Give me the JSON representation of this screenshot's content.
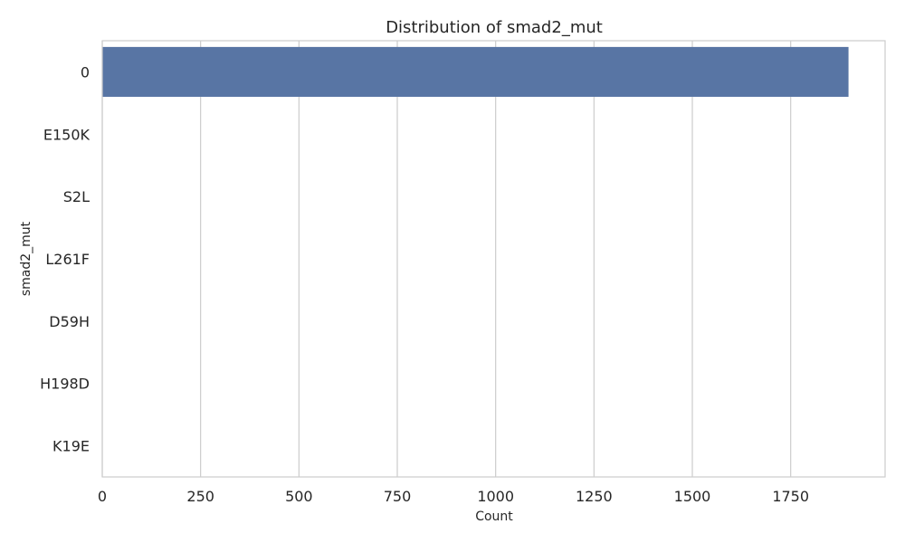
{
  "chart_data": {
    "type": "bar",
    "orientation": "horizontal",
    "title": "Distribution of smad2_mut",
    "xlabel": "Count",
    "ylabel": "smad2_mut",
    "categories": [
      "0",
      "E150K",
      "S2L",
      "L261F",
      "D59H",
      "H198D",
      "K19E"
    ],
    "values": [
      1897,
      1,
      1,
      1,
      1,
      1,
      1
    ],
    "xlim": [
      0,
      1990
    ],
    "xticks": [
      0,
      250,
      500,
      750,
      1000,
      1250,
      1500,
      1750
    ],
    "grid": true,
    "bar_color": "#5875a4"
  }
}
